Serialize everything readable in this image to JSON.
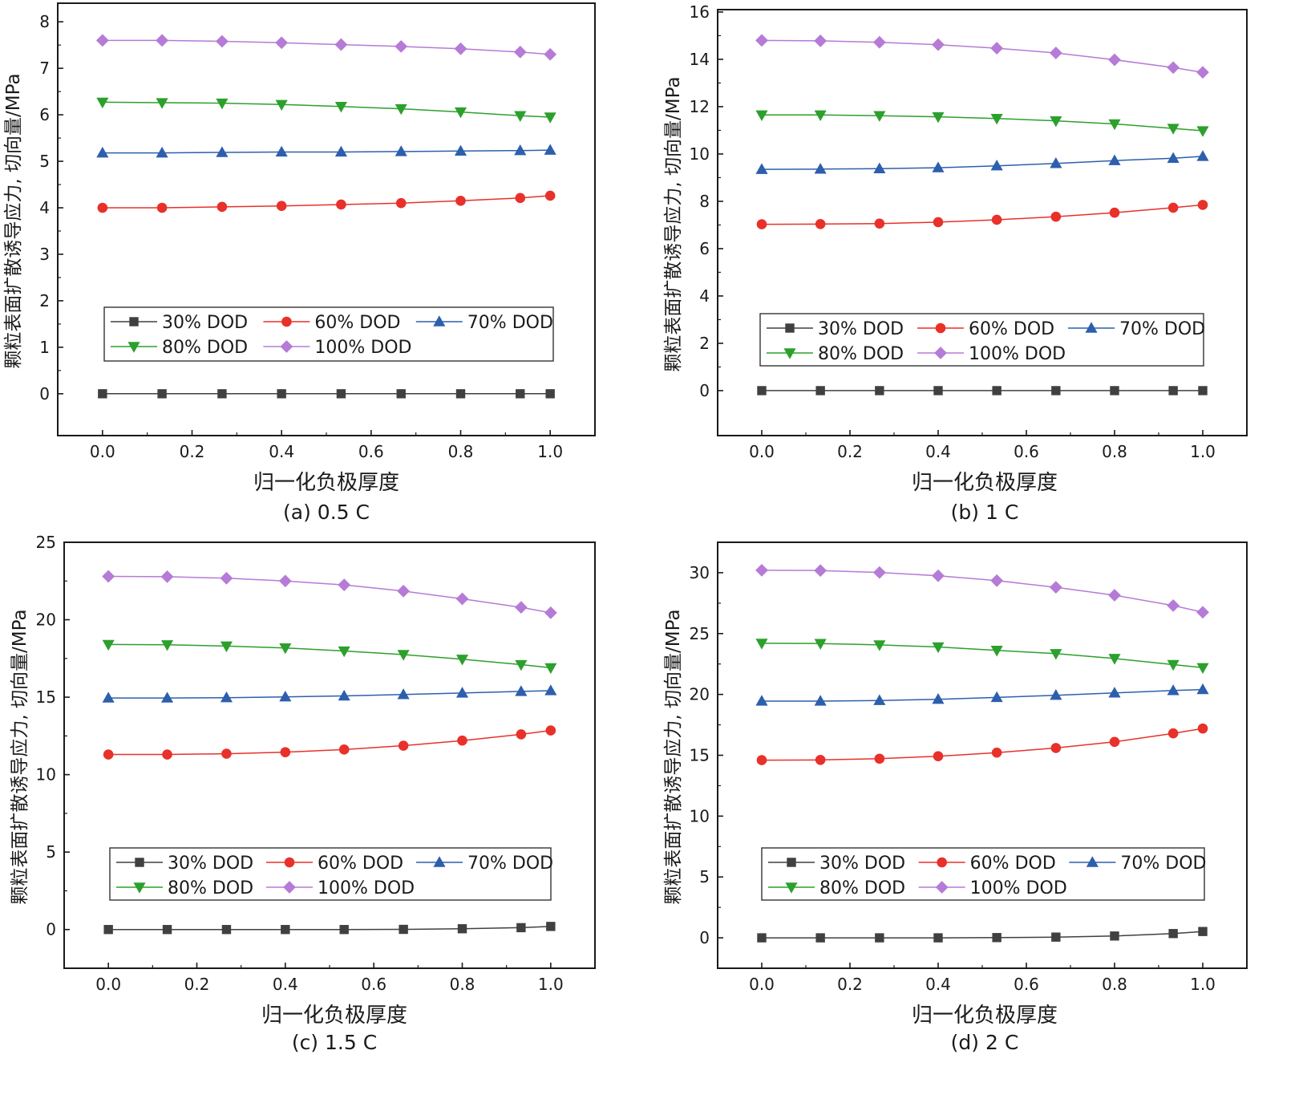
{
  "chart_data": [
    {
      "type": "line",
      "title": "(a) 0.5 C",
      "xlabel": "归一化负极厚度",
      "ylabel": "颗粒表面扩散诱导应力, 切向量/MPa",
      "xlim": [
        -0.1,
        1.1
      ],
      "ylim": [
        -0.9,
        8.4
      ],
      "x_ticks": [
        "0.0",
        "0.2",
        "0.4",
        "0.6",
        "0.8",
        "1.0"
      ],
      "y_ticks": [
        "0",
        "1",
        "2",
        "3",
        "4",
        "5",
        "6",
        "7",
        "8"
      ],
      "x": [
        0,
        0.133,
        0.267,
        0.4,
        0.533,
        0.667,
        0.8,
        0.933,
        1.0
      ],
      "series": [
        {
          "name": "30% DOD",
          "values": [
            0,
            0,
            0,
            0,
            0,
            0,
            0,
            0,
            0
          ]
        },
        {
          "name": "60% DOD",
          "values": [
            4.0,
            4.0,
            4.02,
            4.04,
            4.07,
            4.1,
            4.15,
            4.21,
            4.26
          ]
        },
        {
          "name": "70% DOD",
          "values": [
            5.18,
            5.18,
            5.19,
            5.2,
            5.2,
            5.21,
            5.22,
            5.23,
            5.24
          ]
        },
        {
          "name": "80% DOD",
          "values": [
            6.27,
            6.26,
            6.25,
            6.22,
            6.18,
            6.13,
            6.06,
            5.98,
            5.95
          ]
        },
        {
          "name": "100% DOD",
          "values": [
            7.6,
            7.6,
            7.58,
            7.55,
            7.51,
            7.47,
            7.42,
            7.35,
            7.3
          ]
        }
      ]
    },
    {
      "type": "line",
      "title": "(b) 1 C",
      "xlabel": "归一化负极厚度",
      "ylabel": "颗粒表面扩散诱导应力, 切向量/MPa",
      "xlim": [
        -0.1,
        1.1
      ],
      "ylim": [
        -1.9,
        16.1
      ],
      "x_ticks": [
        "0.0",
        "0.2",
        "0.4",
        "0.6",
        "0.8",
        "1.0"
      ],
      "y_ticks": [
        "0",
        "2",
        "4",
        "6",
        "8",
        "10",
        "12",
        "14",
        "16"
      ],
      "x": [
        0,
        0.133,
        0.267,
        0.4,
        0.533,
        0.667,
        0.8,
        0.933,
        1.0
      ],
      "series": [
        {
          "name": "30% DOD",
          "values": [
            0,
            0,
            0,
            0,
            0,
            0,
            0,
            0,
            0
          ]
        },
        {
          "name": "60% DOD",
          "values": [
            7.03,
            7.04,
            7.06,
            7.12,
            7.22,
            7.35,
            7.52,
            7.73,
            7.85
          ]
        },
        {
          "name": "70% DOD",
          "values": [
            9.35,
            9.36,
            9.38,
            9.42,
            9.5,
            9.6,
            9.72,
            9.82,
            9.9
          ]
        },
        {
          "name": "80% DOD",
          "values": [
            11.65,
            11.65,
            11.62,
            11.57,
            11.5,
            11.4,
            11.27,
            11.08,
            10.98
          ]
        },
        {
          "name": "100% DOD",
          "values": [
            14.8,
            14.78,
            14.72,
            14.62,
            14.47,
            14.27,
            13.98,
            13.65,
            13.45
          ]
        }
      ]
    },
    {
      "type": "line",
      "title": "(c) 1.5 C",
      "xlabel": "归一化负极厚度",
      "ylabel": "颗粒表面扩散诱导应力, 切向量/MPa",
      "xlim": [
        -0.1,
        1.1
      ],
      "ylim": [
        -2.5,
        25.0
      ],
      "x_ticks": [
        "0.0",
        "0.2",
        "0.4",
        "0.6",
        "0.8",
        "1.0"
      ],
      "y_ticks": [
        "0",
        "5",
        "10",
        "15",
        "20",
        "25"
      ],
      "x": [
        0,
        0.133,
        0.267,
        0.4,
        0.533,
        0.667,
        0.8,
        0.933,
        1.0
      ],
      "series": [
        {
          "name": "30% DOD",
          "values": [
            0,
            0,
            0,
            0,
            0,
            0.01,
            0.05,
            0.12,
            0.2
          ]
        },
        {
          "name": "60% DOD",
          "values": [
            11.3,
            11.3,
            11.35,
            11.45,
            11.62,
            11.87,
            12.2,
            12.6,
            12.85
          ]
        },
        {
          "name": "70% DOD",
          "values": [
            14.95,
            14.95,
            14.97,
            15.02,
            15.08,
            15.17,
            15.27,
            15.37,
            15.42
          ]
        },
        {
          "name": "80% DOD",
          "values": [
            18.4,
            18.38,
            18.3,
            18.18,
            17.98,
            17.75,
            17.45,
            17.1,
            16.9
          ]
        },
        {
          "name": "100% DOD",
          "values": [
            22.8,
            22.78,
            22.68,
            22.5,
            22.25,
            21.85,
            21.35,
            20.8,
            20.45
          ]
        }
      ]
    },
    {
      "type": "line",
      "title": "(d) 2 C",
      "xlabel": "归一化负极厚度",
      "ylabel": "颗粒表面扩散诱导应力, 切向量/MPa",
      "xlim": [
        -0.1,
        1.1
      ],
      "ylim": [
        -2.5,
        32.5
      ],
      "x_ticks": [
        "0.0",
        "0.2",
        "0.4",
        "0.6",
        "0.8",
        "1.0"
      ],
      "y_ticks": [
        "0",
        "5",
        "10",
        "15",
        "20",
        "25",
        "30"
      ],
      "x": [
        0,
        0.133,
        0.267,
        0.4,
        0.533,
        0.667,
        0.8,
        0.933,
        1.0
      ],
      "series": [
        {
          "name": "30% DOD",
          "values": [
            0,
            0,
            0,
            0,
            0.02,
            0.06,
            0.15,
            0.35,
            0.52
          ]
        },
        {
          "name": "60% DOD",
          "values": [
            14.6,
            14.62,
            14.72,
            14.92,
            15.22,
            15.6,
            16.1,
            16.8,
            17.2
          ]
        },
        {
          "name": "70% DOD",
          "values": [
            19.45,
            19.45,
            19.5,
            19.6,
            19.75,
            19.93,
            20.12,
            20.32,
            20.4
          ]
        },
        {
          "name": "80% DOD",
          "values": [
            24.2,
            24.18,
            24.07,
            23.9,
            23.62,
            23.35,
            22.95,
            22.45,
            22.2
          ]
        },
        {
          "name": "100% DOD",
          "values": [
            30.2,
            30.18,
            30.02,
            29.75,
            29.35,
            28.8,
            28.15,
            27.3,
            26.75
          ]
        }
      ]
    }
  ],
  "series_styles": [
    {
      "name": "30% DOD",
      "color": "#404040",
      "marker": "square"
    },
    {
      "name": "60% DOD",
      "color": "#e8312a",
      "marker": "circle"
    },
    {
      "name": "70% DOD",
      "color": "#2d5fad",
      "marker": "triangle-up"
    },
    {
      "name": "80% DOD",
      "color": "#2ca02c",
      "marker": "triangle-down"
    },
    {
      "name": "100% DOD",
      "color": "#b57bd6",
      "marker": "diamond"
    }
  ]
}
